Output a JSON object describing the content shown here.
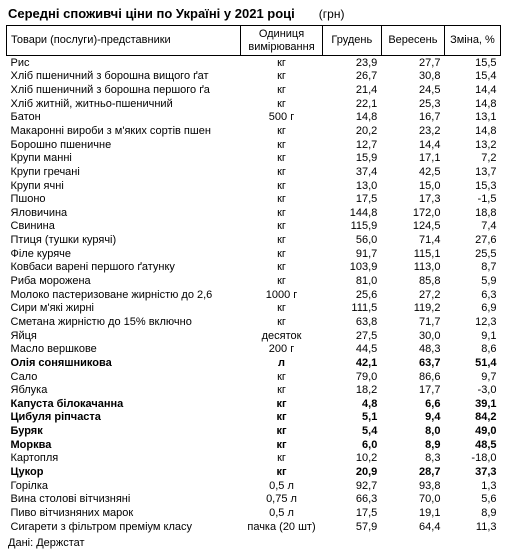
{
  "title": "Середні споживчі ціни по Україні у 2021 році",
  "currency_label": "(грн)",
  "source_label": "Дані: Держстат",
  "columns": {
    "name": "Товари (послуги)-представники",
    "unit": "Одиниця вимірювання",
    "dec": "Грудень",
    "sep": "Вересень",
    "chg": "Зміна, %"
  },
  "rows": [
    {
      "name": "Рис",
      "unit": "кг",
      "dec": "23,9",
      "sep": "27,7",
      "chg": "15,5",
      "bold": false
    },
    {
      "name": "Хліб пшеничний з борошна вищого ґат",
      "unit": "кг",
      "dec": "26,7",
      "sep": "30,8",
      "chg": "15,4",
      "bold": false
    },
    {
      "name": "Хліб пшеничний з борошна першого ґа",
      "unit": "кг",
      "dec": "21,4",
      "sep": "24,5",
      "chg": "14,4",
      "bold": false
    },
    {
      "name": "Хліб житній, житньо-пшеничний",
      "unit": "кг",
      "dec": "22,1",
      "sep": "25,3",
      "chg": "14,8",
      "bold": false
    },
    {
      "name": "Батон",
      "unit": "500 г",
      "dec": "14,8",
      "sep": "16,7",
      "chg": "13,1",
      "bold": false
    },
    {
      "name": "Макаронні вироби з м'яких сортів пшен",
      "unit": "кг",
      "dec": "20,2",
      "sep": "23,2",
      "chg": "14,8",
      "bold": false
    },
    {
      "name": "Борошно пшеничне",
      "unit": "кг",
      "dec": "12,7",
      "sep": "14,4",
      "chg": "13,2",
      "bold": false
    },
    {
      "name": "Крупи манні",
      "unit": "кг",
      "dec": "15,9",
      "sep": "17,1",
      "chg": "7,2",
      "bold": false
    },
    {
      "name": "Крупи гречані",
      "unit": "кг",
      "dec": "37,4",
      "sep": "42,5",
      "chg": "13,7",
      "bold": false
    },
    {
      "name": "Крупи ячні",
      "unit": "кг",
      "dec": "13,0",
      "sep": "15,0",
      "chg": "15,3",
      "bold": false
    },
    {
      "name": "Пшоно",
      "unit": "кг",
      "dec": "17,5",
      "sep": "17,3",
      "chg": "-1,5",
      "bold": false
    },
    {
      "name": "Яловичина",
      "unit": "кг",
      "dec": "144,8",
      "sep": "172,0",
      "chg": "18,8",
      "bold": false
    },
    {
      "name": "Свинина",
      "unit": "кг",
      "dec": "115,9",
      "sep": "124,5",
      "chg": "7,4",
      "bold": false
    },
    {
      "name": "Птиця (тушки курячі)",
      "unit": "кг",
      "dec": "56,0",
      "sep": "71,4",
      "chg": "27,6",
      "bold": false
    },
    {
      "name": "Філе куряче",
      "unit": "кг",
      "dec": "91,7",
      "sep": "115,1",
      "chg": "25,5",
      "bold": false
    },
    {
      "name": "Ковбаси варені першого ґатунку",
      "unit": "кг",
      "dec": "103,9",
      "sep": "113,0",
      "chg": "8,7",
      "bold": false
    },
    {
      "name": "Риба морожена",
      "unit": "кг",
      "dec": "81,0",
      "sep": "85,8",
      "chg": "5,9",
      "bold": false
    },
    {
      "name": "Молоко пастеризоване жирністю до 2,6",
      "unit": "1000 г",
      "dec": "25,6",
      "sep": "27,2",
      "chg": "6,3",
      "bold": false
    },
    {
      "name": "Сири м'які жирні",
      "unit": "кг",
      "dec": "111,5",
      "sep": "119,2",
      "chg": "6,9",
      "bold": false
    },
    {
      "name": "Сметана жирністю до 15% включно",
      "unit": "кг",
      "dec": "63,8",
      "sep": "71,7",
      "chg": "12,3",
      "bold": false
    },
    {
      "name": "Яйця",
      "unit": "десяток",
      "dec": "27,5",
      "sep": "30,0",
      "chg": "9,1",
      "bold": false
    },
    {
      "name": "Масло вершкове",
      "unit": "200 г",
      "dec": "44,5",
      "sep": "48,3",
      "chg": "8,6",
      "bold": false
    },
    {
      "name": "Олія соняшникова",
      "unit": "л",
      "dec": "42,1",
      "sep": "63,7",
      "chg": "51,4",
      "bold": true
    },
    {
      "name": "Сало",
      "unit": "кг",
      "dec": "79,0",
      "sep": "86,6",
      "chg": "9,7",
      "bold": false
    },
    {
      "name": "Яблука",
      "unit": "кг",
      "dec": "18,2",
      "sep": "17,7",
      "chg": "-3,0",
      "bold": false
    },
    {
      "name": "Капуста білокачанна",
      "unit": "кг",
      "dec": "4,8",
      "sep": "6,6",
      "chg": "39,1",
      "bold": true
    },
    {
      "name": "Цибуля ріпчаста",
      "unit": "кг",
      "dec": "5,1",
      "sep": "9,4",
      "chg": "84,2",
      "bold": true
    },
    {
      "name": "Буряк",
      "unit": "кг",
      "dec": "5,4",
      "sep": "8,0",
      "chg": "49,0",
      "bold": true
    },
    {
      "name": "Морква",
      "unit": "кг",
      "dec": "6,0",
      "sep": "8,9",
      "chg": "48,5",
      "bold": true
    },
    {
      "name": "Картопля",
      "unit": "кг",
      "dec": "10,2",
      "sep": "8,3",
      "chg": "-18,0",
      "bold": false
    },
    {
      "name": "Цукор",
      "unit": "кг",
      "dec": "20,9",
      "sep": "28,7",
      "chg": "37,3",
      "bold": true
    },
    {
      "name": "Горілка",
      "unit": "0,5 л",
      "dec": "92,7",
      "sep": "93,8",
      "chg": "1,3",
      "bold": false
    },
    {
      "name": "Вина столові вітчизняні",
      "unit": "0,75 л",
      "dec": "66,3",
      "sep": "70,0",
      "chg": "5,6",
      "bold": false
    },
    {
      "name": "Пиво вітчизняних марок",
      "unit": "0,5 л",
      "dec": "17,5",
      "sep": "19,1",
      "chg": "8,9",
      "bold": false
    },
    {
      "name": "Сигарети з фільтром преміум класу",
      "unit": "пачка (20 шт)",
      "dec": "57,9",
      "sep": "64,4",
      "chg": "11,3",
      "bold": false
    }
  ]
}
